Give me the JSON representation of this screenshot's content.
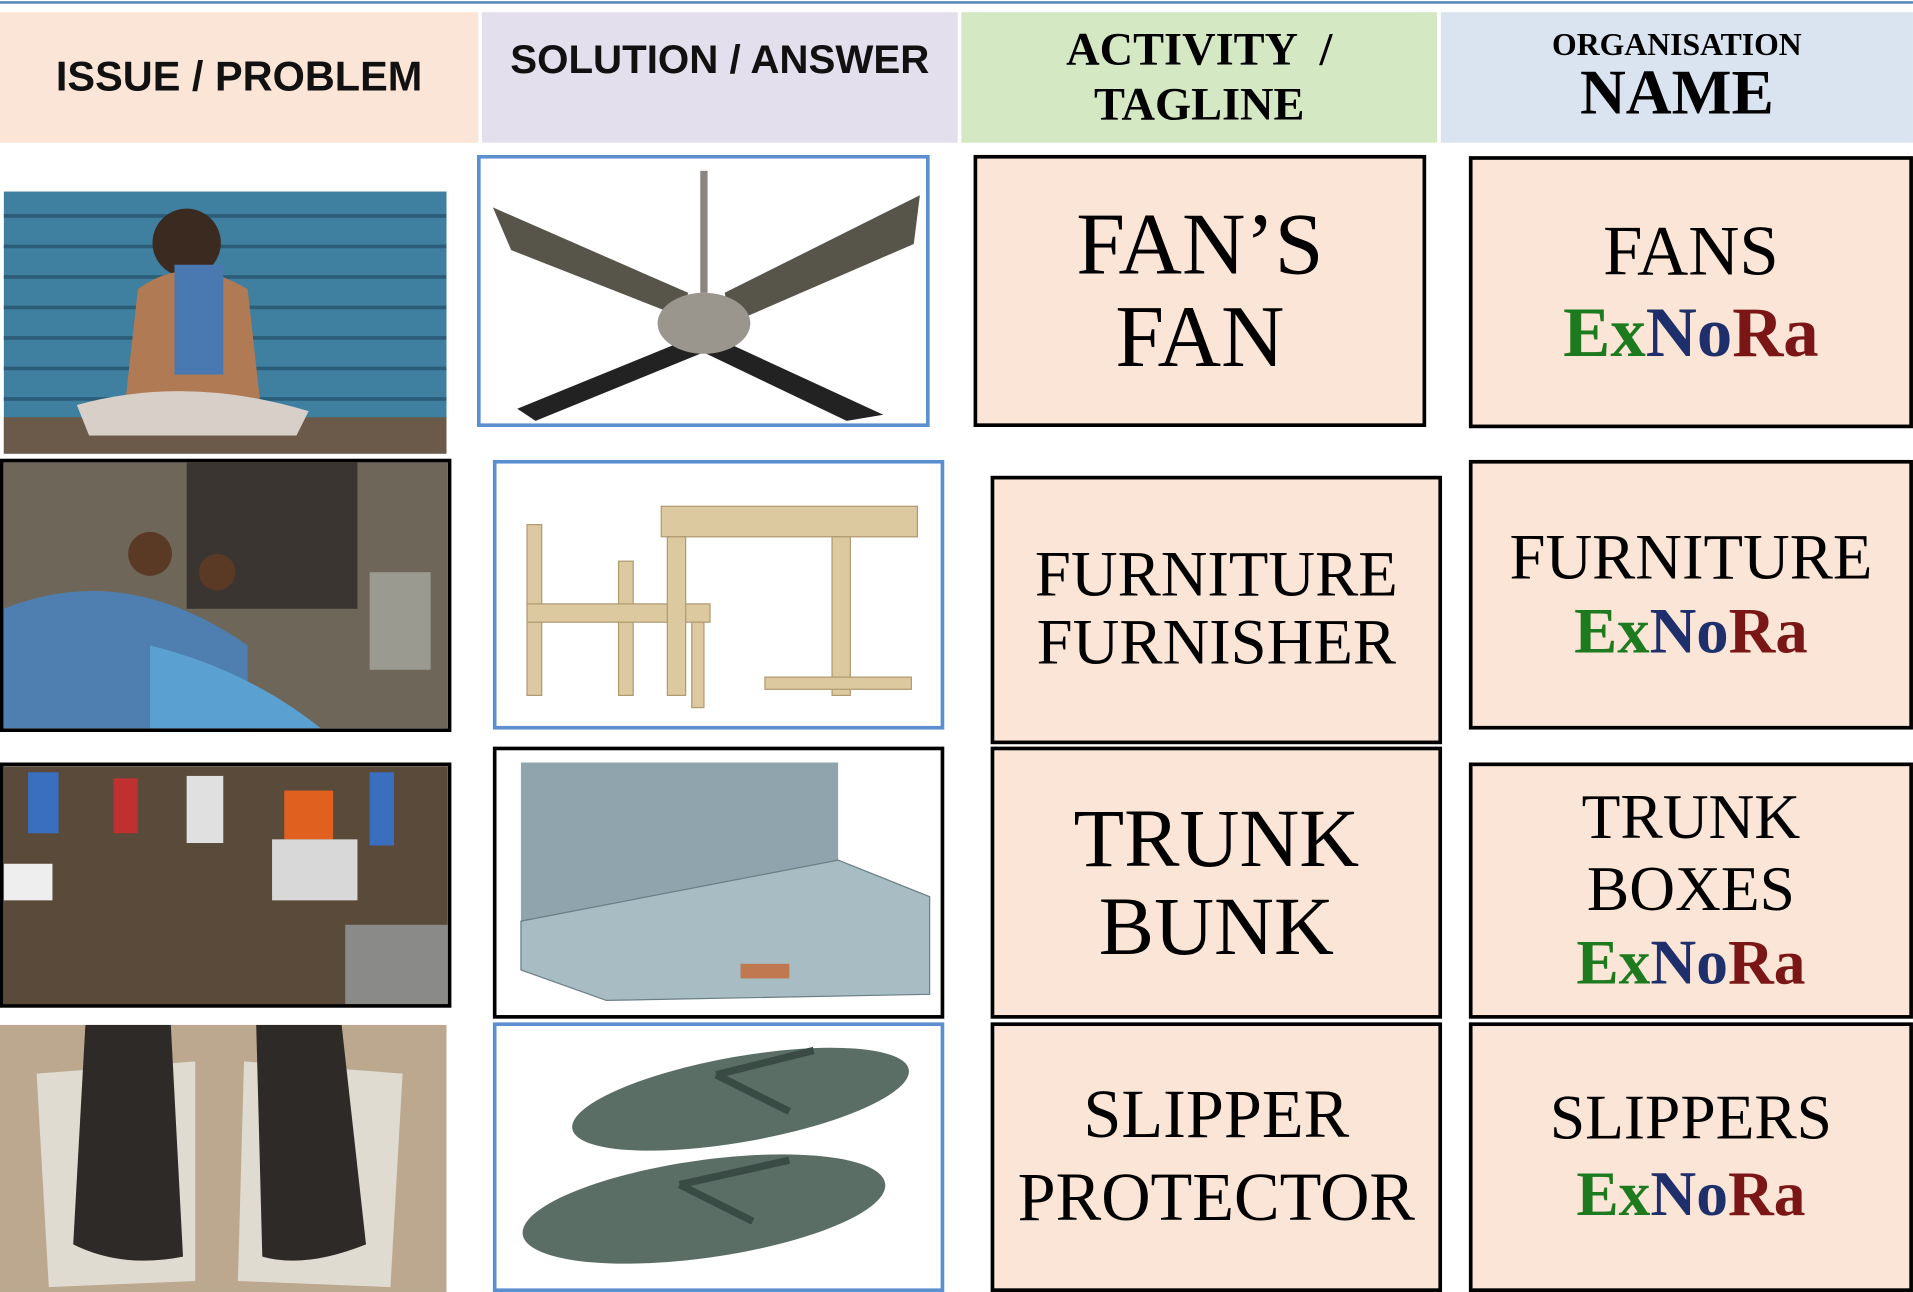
{
  "header": {
    "issue": "ISSUE / PROBLEM",
    "solution": "SOLUTION / ANSWER",
    "activity": [
      "ACTIVITY  /",
      "TAGLINE"
    ],
    "organisation": {
      "small": "ORGANISATION",
      "large": "NAME"
    }
  },
  "brand": [
    "Ex",
    "No",
    "Ra"
  ],
  "rows": [
    {
      "activity": [
        "FAN’S",
        "FAN"
      ],
      "organisation": [
        "FANS"
      ]
    },
    {
      "activity": [
        "FURNITURE",
        "FURNISHER"
      ],
      "organisation": [
        "FURNITURE"
      ]
    },
    {
      "activity": [
        "TRUNK",
        "BUNK"
      ],
      "organisation": [
        "TRUNK",
        "BOXES"
      ]
    },
    {
      "activity": [
        "SLIPPER",
        "PROTECTOR"
      ],
      "organisation": [
        "SLIPPERS"
      ]
    }
  ]
}
